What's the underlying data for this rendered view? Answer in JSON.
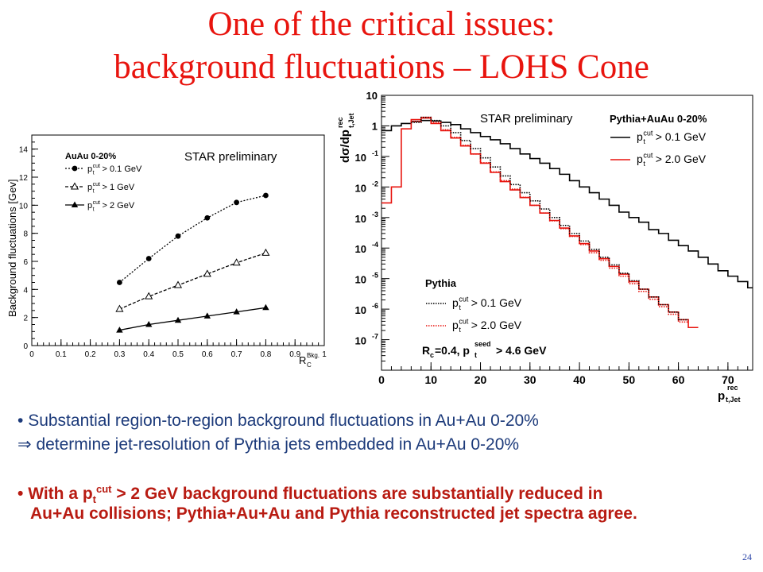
{
  "slide": {
    "title_line1": "One of the critical issues:",
    "title_line2": "background fluctuations – LOHS Cone",
    "bullets": [
      {
        "marker": "• ",
        "text": "Substantial region-to-region background fluctuations in Au+Au 0-20%"
      },
      {
        "marker": "⇒ ",
        "text": "determine jet-resolution of Pythia jets embedded in Au+Au 0-20%"
      },
      {
        "marker": "• ",
        "text_pre": "With a p",
        "sub": "t",
        "sup": "cut",
        "text_post": " > 2 GeV background fluctuations are substantially reduced in"
      },
      {
        "text": "Au+Au collisions; Pythia+Au+Au and Pythia reconstructed jet spectra agree."
      }
    ],
    "page_number": "24",
    "colors": {
      "title": "#e8140e",
      "bullet_blue": "#1c3a7a",
      "bullet_red": "#b81b12",
      "page_number": "#2a44a8"
    }
  },
  "chart_data": [
    {
      "type": "line",
      "label": "STAR preliminary",
      "legend_header": "AuAu 0-20%",
      "legend_position": "top-left",
      "xlabel": "R_C^Bkg.",
      "ylabel": "Background fluctuations [Gev]",
      "xlim": [
        0,
        1
      ],
      "ylim": [
        0,
        15
      ],
      "xticks": [
        "0",
        "0.1",
        "0.2",
        "0.3",
        "0.4",
        "0.5",
        "0.6",
        "0.7",
        "0.8",
        "0.9",
        "1"
      ],
      "yticks": [
        "0",
        "2",
        "4",
        "6",
        "8",
        "10",
        "12",
        "14"
      ],
      "x": [
        0.3,
        0.4,
        0.5,
        0.6,
        0.7,
        0.8
      ],
      "series": [
        {
          "name": "p_t^cut > 0.1 GeV",
          "marker": "filled-circle",
          "values": [
            4.5,
            6.2,
            7.8,
            9.1,
            10.2,
            10.7
          ]
        },
        {
          "name": "p_t^cut > 1 GeV",
          "marker": "open-triangle",
          "values": [
            2.6,
            3.5,
            4.3,
            5.1,
            5.9,
            6.6
          ]
        },
        {
          "name": "p_t^cut > 2 GeV",
          "marker": "filled-triangle",
          "values": [
            1.1,
            1.5,
            1.8,
            2.1,
            2.4,
            2.7
          ]
        }
      ]
    },
    {
      "type": "line",
      "label": "STAR preliminary",
      "yscale": "log",
      "xlabel": "p_t,Jet^rec",
      "ylabel": "dσ/dp_t,Jet^rec",
      "xlim": [
        0,
        75
      ],
      "ylim": [
        1e-08,
        10
      ],
      "xticks": [
        "0",
        "10",
        "20",
        "30",
        "40",
        "50",
        "60",
        "70"
      ],
      "ytick_exponents": [
        1,
        0,
        -1,
        -2,
        -3,
        -4,
        -5,
        -6,
        -7
      ],
      "legend_groups": [
        {
          "header": "Pythia+AuAu 0-20%",
          "position": "top-right",
          "entries": [
            "p_t^cut > 0.1 GeV",
            "p_t^cut > 2.0 GeV"
          ]
        },
        {
          "header": "Pythia",
          "position": "bottom-left",
          "entries": [
            "p_t^cut > 0.1 GeV",
            "p_t^cut > 2.0 GeV"
          ]
        }
      ],
      "annotation": "R_c=0.4, p_t^seed > 4.6 GeV",
      "x": [
        0,
        2,
        4,
        6,
        8,
        10,
        12,
        14,
        16,
        18,
        20,
        22,
        24,
        26,
        28,
        30,
        32,
        34,
        36,
        38,
        40,
        42,
        44,
        46,
        48,
        50,
        52,
        54,
        56,
        58,
        60,
        62,
        64,
        66,
        68,
        70,
        72,
        74
      ],
      "series": [
        {
          "name": "Pythia+AuAu p_t^cut > 0.1 GeV",
          "style": "solid",
          "color": "#000000",
          "values": [
            0.7,
            1.0,
            1.2,
            1.4,
            1.5,
            1.45,
            1.3,
            1.1,
            0.8,
            0.6,
            0.45,
            0.35,
            0.26,
            0.18,
            0.12,
            0.085,
            0.06,
            0.04,
            0.026,
            0.016,
            0.01,
            0.0065,
            0.004,
            0.0025,
            0.0015,
            0.001,
            0.0007,
            0.0004,
            0.0003,
            0.00018,
            0.00012,
            8e-05,
            5e-05,
            3e-05,
            1.8e-05,
            1.2e-05,
            8e-06,
            5e-06
          ]
        },
        {
          "name": "Pythia+AuAu p_t^cut > 2.0 GeV",
          "style": "solid",
          "color": "#e8140e",
          "values": [
            0.003,
            0.01,
            0.8,
            1.6,
            1.8,
            1.2,
            0.7,
            0.4,
            0.22,
            0.12,
            0.06,
            0.03,
            0.015,
            0.008,
            0.0045,
            0.0025,
            0.0014,
            0.0008,
            0.00045,
            0.00025,
            0.00014,
            8e-05,
            4.5e-05,
            2.5e-05,
            1.4e-05,
            8e-06,
            4.5e-06,
            2.5e-06,
            1.4e-06,
            8e-07,
            4.5e-07,
            2.5e-07,
            null,
            null,
            null,
            null,
            null,
            null
          ]
        },
        {
          "name": "Pythia p_t^cut > 0.1 GeV",
          "style": "dotted",
          "color": "#000000",
          "values": [
            null,
            null,
            null,
            1.3,
            1.9,
            1.5,
            1.0,
            0.6,
            0.33,
            0.18,
            0.09,
            0.045,
            0.023,
            0.012,
            0.0065,
            0.0035,
            0.0019,
            0.001,
            0.00055,
            0.0003,
            0.00017,
            9e-05,
            5e-05,
            2.8e-05,
            1.5e-05,
            8.5e-06,
            4.5e-06,
            2.5e-06,
            1.4e-06,
            8e-07,
            4.5e-07,
            null,
            null,
            null,
            null,
            null,
            null,
            null
          ]
        },
        {
          "name": "Pythia p_t^cut > 2.0 GeV",
          "style": "dotted",
          "color": "#e8140e",
          "values": [
            null,
            null,
            null,
            1.4,
            1.9,
            1.3,
            0.75,
            0.42,
            0.23,
            0.12,
            0.062,
            0.031,
            0.016,
            0.0085,
            0.0046,
            0.0025,
            0.0014,
            0.00078,
            0.00043,
            0.00024,
            0.00013,
            7e-05,
            4e-05,
            2.2e-05,
            1.2e-05,
            6.8e-06,
            3.8e-06,
            2.1e-06,
            1.2e-06,
            6.8e-07,
            3.8e-07,
            null,
            null,
            null,
            null,
            null,
            null,
            null
          ]
        }
      ]
    }
  ]
}
